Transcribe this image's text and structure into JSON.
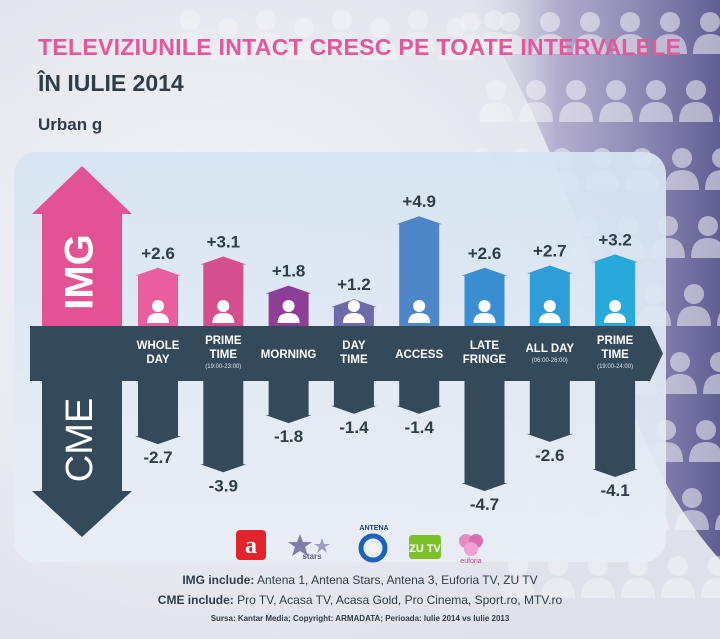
{
  "title": "TELEVIZIUNILE INTACT CRESC PE TOATE INTERVALELE",
  "title_line2": "ÎN IULIE 2014",
  "subtitle": "Urban g",
  "chart_data": {
    "type": "bar",
    "top_group_label": "IMG",
    "bottom_group_label": "CME",
    "categories": [
      {
        "label": [
          "WHOLE",
          "DAY"
        ],
        "note": ""
      },
      {
        "label": [
          "PRIME",
          "TIME"
        ],
        "note": "(19:00-23:00)"
      },
      {
        "label": [
          "MORNING"
        ],
        "note": ""
      },
      {
        "label": [
          "DAY",
          "TIME"
        ],
        "note": ""
      },
      {
        "label": [
          "ACCESS"
        ],
        "note": ""
      },
      {
        "label": [
          "LATE",
          "FRINGE"
        ],
        "note": ""
      },
      {
        "label": [
          "ALL DAY"
        ],
        "note": "(06:00-26:00)"
      },
      {
        "label": [
          "PRIME",
          "TIME"
        ],
        "note": "(19:00-24:00)"
      }
    ],
    "series": [
      {
        "name": "IMG",
        "values": [
          2.6,
          3.1,
          1.8,
          1.2,
          4.9,
          2.6,
          2.7,
          3.2
        ],
        "labels": [
          "+2.6",
          "+3.1",
          "+1.8",
          "+1.2",
          "+4.9",
          "+2.6",
          "+2.7",
          "+3.2"
        ],
        "colors": [
          "#ea5d9e",
          "#d54f8e",
          "#8d3f97",
          "#6d6aa9",
          "#4f86c7",
          "#3a8fd2",
          "#2f9ed8",
          "#27a9dc"
        ]
      },
      {
        "name": "CME",
        "values": [
          -2.7,
          -3.9,
          -1.8,
          -1.4,
          -1.4,
          -4.7,
          -2.6,
          -4.1
        ],
        "labels": [
          "-2.7",
          "-3.9",
          "-1.8",
          "-1.4",
          "-1.4",
          "-4.7",
          "-2.6",
          "-4.1"
        ],
        "colors": [
          "#34495a",
          "#34495a",
          "#34495a",
          "#34495a",
          "#34495a",
          "#34495a",
          "#34495a",
          "#34495a"
        ]
      }
    ]
  },
  "legend": {
    "img_key": "IMG include:",
    "img_value": "Antena 1, Antena Stars, Antena 3, Euforia TV, ZU TV",
    "cme_key": "CME include:",
    "cme_value": "Pro TV, Acasa TV, Acasa Gold, Pro Cinema, Sport.ro, MTV.ro"
  },
  "source": "Sursa: Kantar Media;  Copyright: ARMADATA;  Perioada: Iulie 2014 vs Iulie 2013",
  "logos": [
    "a",
    "stars",
    "ANTENA",
    "ZU TV",
    "euforia"
  ],
  "colors": {
    "band": "#34495a",
    "title": "#e4579b",
    "text": "#2f3d48"
  }
}
